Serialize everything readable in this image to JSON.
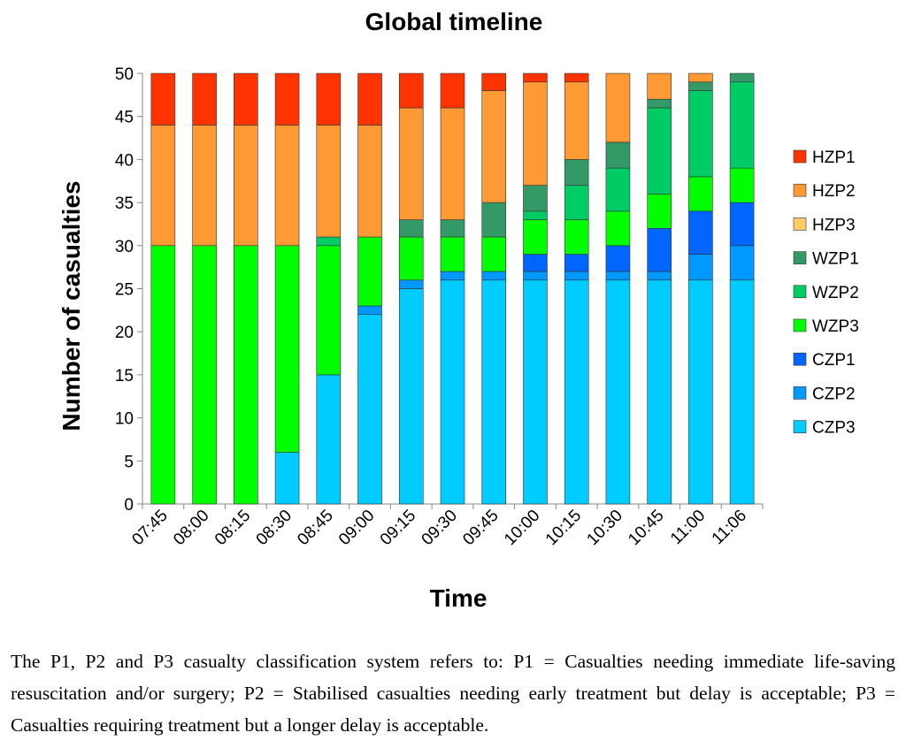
{
  "chart_data": {
    "type": "bar",
    "stacked": true,
    "title": "Global timeline",
    "xlabel": "Time",
    "ylabel": "Number of casualties",
    "ylim": [
      0,
      50
    ],
    "yticks": [
      0,
      5,
      10,
      15,
      20,
      25,
      30,
      35,
      40,
      45,
      50
    ],
    "grid": false,
    "legend_position": "right",
    "categories": [
      "07:45",
      "08:00",
      "08:15",
      "08:30",
      "08:45",
      "09:00",
      "09:15",
      "09:30",
      "09:45",
      "10:00",
      "10:15",
      "10:30",
      "10:45",
      "11:00",
      "11:06"
    ],
    "series": [
      {
        "name": "CZP3",
        "color": "#00CCFF",
        "values": [
          0,
          0,
          0,
          6,
          15,
          22,
          25,
          26,
          26,
          26,
          26,
          26,
          26,
          26,
          26
        ]
      },
      {
        "name": "CZP2",
        "color": "#0099FF",
        "values": [
          0,
          0,
          0,
          0,
          0,
          1,
          1,
          1,
          1,
          1,
          1,
          1,
          1,
          3,
          4
        ]
      },
      {
        "name": "CZP1",
        "color": "#0066FF",
        "values": [
          0,
          0,
          0,
          0,
          0,
          0,
          0,
          0,
          0,
          2,
          2,
          3,
          5,
          5,
          5
        ]
      },
      {
        "name": "WZP3",
        "color": "#00FF00",
        "values": [
          30,
          30,
          30,
          24,
          15,
          8,
          5,
          4,
          4,
          4,
          4,
          4,
          4,
          4,
          4
        ]
      },
      {
        "name": "WZP2",
        "color": "#00CC66",
        "values": [
          0,
          0,
          0,
          0,
          1,
          0,
          0,
          0,
          0,
          1,
          4,
          5,
          10,
          10,
          10
        ]
      },
      {
        "name": "WZP1",
        "color": "#339966",
        "values": [
          0,
          0,
          0,
          0,
          0,
          0,
          2,
          2,
          4,
          3,
          3,
          3,
          1,
          1,
          1
        ]
      },
      {
        "name": "HZP3",
        "color": "#FFCC66",
        "values": [
          0,
          0,
          0,
          0,
          0,
          0,
          0,
          0,
          0,
          0,
          0,
          0,
          0,
          0,
          0
        ]
      },
      {
        "name": "HZP2",
        "color": "#FF9933",
        "values": [
          14,
          14,
          14,
          14,
          13,
          13,
          13,
          13,
          13,
          12,
          9,
          8,
          3,
          1,
          0
        ]
      },
      {
        "name": "HZP1",
        "color": "#FF3300",
        "values": [
          6,
          6,
          6,
          6,
          6,
          6,
          4,
          4,
          2,
          1,
          1,
          0,
          0,
          0,
          0
        ]
      }
    ],
    "legend_order": [
      "HZP1",
      "HZP2",
      "HZP3",
      "WZP1",
      "WZP2",
      "WZP3",
      "CZP1",
      "CZP2",
      "CZP3"
    ]
  },
  "caption": "The P1, P2 and P3 casualty classification system refers to: P1 = Casualties needing immediate life-saving resuscitation and/or surgery; P2 = Stabilised casualties needing early treatment but delay is acceptable; P3 = Casualties requiring treatment but a longer delay is acceptable."
}
